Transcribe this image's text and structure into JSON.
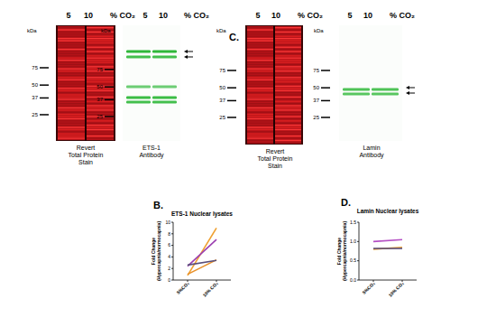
{
  "panels": [
    {
      "header": {
        "lanes": [
          "5",
          "10"
        ],
        "unit": "% CO₂"
      },
      "kda_label": "kDa",
      "markers": [
        75,
        50,
        37,
        25
      ],
      "caption": [
        "Revert",
        "Total Protein",
        "Stain"
      ]
    },
    {
      "header": {
        "lanes": [
          "5",
          "10"
        ],
        "unit": "% CO₂"
      },
      "kda_label": "kDa",
      "markers": [
        75,
        50,
        37,
        25
      ],
      "caption": [
        "ETS-1",
        "Antibody"
      ]
    },
    {
      "label": "C.",
      "header": {
        "lanes": [
          "5",
          "10"
        ],
        "unit": "% CO₂"
      },
      "kda_label": "kDa",
      "markers": [
        75,
        50,
        37,
        25
      ],
      "caption": [
        "Revert",
        "Total Protein",
        "Stain"
      ]
    },
    {
      "header": {
        "lanes": [
          "5",
          "10"
        ],
        "unit": "% CO₂"
      },
      "kda_label": "kDa",
      "markers": [
        75,
        50,
        37,
        25
      ],
      "caption": [
        "Lamin",
        "Antibody"
      ]
    }
  ],
  "chart_data": [
    {
      "type": "line",
      "annotations": [
        "B."
      ],
      "title": "ETS-1 Nuclear lysates",
      "y_label": "Fold Change (Hypercapnia/normocapnia)",
      "categories": [
        "5%CO₂",
        "10% CO₂"
      ],
      "series": [
        {
          "color": "#f0a030",
          "values": [
            0.8,
            9.0
          ]
        },
        {
          "color": "#9b3fb0",
          "values": [
            2.4,
            7.0
          ]
        },
        {
          "color": "#e8902a",
          "values": [
            1.0,
            3.5
          ]
        },
        {
          "color": "#5a4f7a",
          "values": [
            2.6,
            3.4
          ]
        }
      ],
      "ylim": [
        0,
        10
      ],
      "yticks": [
        0,
        2,
        4,
        6,
        8,
        10
      ]
    },
    {
      "type": "line",
      "annotations": [
        "D."
      ],
      "title": "Lamin Nuclear lysates",
      "y_label": "Fold Change (Hypercapnia/normocapnia)",
      "categories": [
        "5%CO₂",
        "10% CO₂"
      ],
      "series": [
        {
          "color": "#b44fc4",
          "values": [
            1.0,
            1.05
          ]
        },
        {
          "color": "#f0a030",
          "values": [
            0.8,
            0.85
          ]
        },
        {
          "color": "#5a4f7a",
          "values": [
            0.82,
            0.82
          ]
        }
      ],
      "ylim": [
        0,
        1.5
      ],
      "yticks": [
        {
          "value": 0,
          "label": "0.0"
        },
        {
          "value": 0.5,
          "label": "0.5"
        },
        {
          "value": 1,
          "label": "1.0"
        },
        {
          "value": 1.5,
          "label": "1.5"
        }
      ]
    }
  ]
}
